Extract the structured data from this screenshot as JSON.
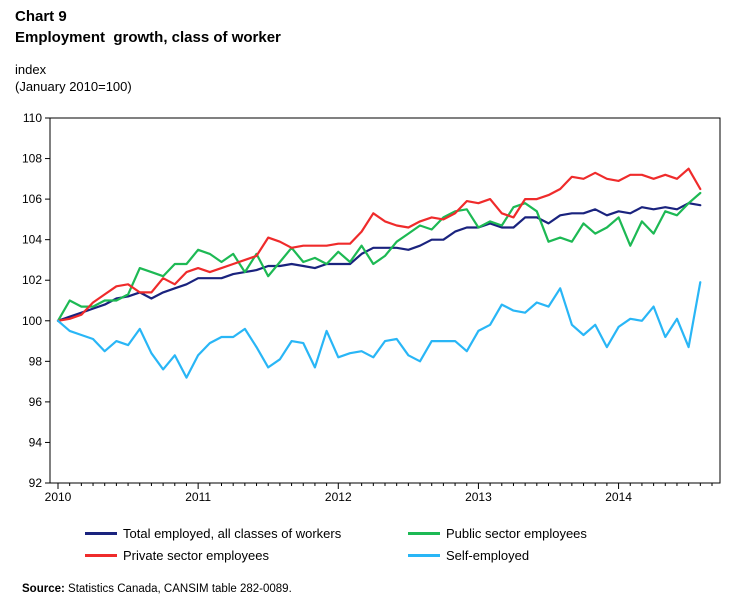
{
  "header": {
    "chart_number": "Chart 9",
    "title": "Employment  growth, class of worker",
    "unit_label": "index",
    "unit_note": "(January 2010=100)"
  },
  "footer": {
    "source_label": "Source:",
    "source_text": "Statistics Canada, CANSIM table 282-0089."
  },
  "chart_data": {
    "type": "line",
    "title": "Employment  growth, class of worker",
    "xlabel": "",
    "ylabel": "index (January 2010=100)",
    "ylim": [
      92,
      110
    ],
    "yticks": [
      "92",
      "94",
      "96",
      "98",
      "100",
      "102",
      "104",
      "106",
      "108",
      "110"
    ],
    "xlim": [
      0,
      56
    ],
    "xticks": [
      {
        "label": "2010",
        "month": 0
      },
      {
        "label": "2011",
        "month": 12
      },
      {
        "label": "2012",
        "month": 24
      },
      {
        "label": "2013",
        "month": 36
      },
      {
        "label": "2014",
        "month": 48
      }
    ],
    "x_start": "January 2010",
    "grid": false,
    "legend_position": "bottom",
    "series": [
      {
        "name": "Total employed, all classes of workers",
        "color": "#1a237e",
        "values": [
          100.0,
          100.2,
          100.4,
          100.6,
          100.8,
          101.1,
          101.2,
          101.4,
          101.1,
          101.4,
          101.6,
          101.8,
          102.1,
          102.1,
          102.1,
          102.3,
          102.4,
          102.5,
          102.7,
          102.7,
          102.8,
          102.7,
          102.6,
          102.8,
          102.8,
          102.8,
          103.3,
          103.6,
          103.6,
          103.6,
          103.5,
          103.7,
          104.0,
          104.0,
          104.4,
          104.6,
          104.6,
          104.8,
          104.6,
          104.6,
          105.1,
          105.1,
          104.8,
          105.2,
          105.3,
          105.3,
          105.5,
          105.2,
          105.4,
          105.3,
          105.6,
          105.5,
          105.6,
          105.5,
          105.8,
          105.7
        ]
      },
      {
        "name": "Public sector employees",
        "color": "#1db954",
        "values": [
          100.0,
          101.0,
          100.7,
          100.7,
          101.0,
          101.0,
          101.3,
          102.6,
          102.4,
          102.2,
          102.8,
          102.8,
          103.5,
          103.3,
          102.9,
          103.3,
          102.4,
          103.3,
          102.2,
          102.9,
          103.6,
          102.9,
          103.1,
          102.8,
          103.4,
          102.9,
          103.7,
          102.8,
          103.2,
          103.9,
          104.3,
          104.7,
          104.5,
          105.1,
          105.4,
          105.5,
          104.6,
          104.9,
          104.7,
          105.6,
          105.8,
          105.4,
          103.9,
          104.1,
          103.9,
          104.8,
          104.3,
          104.6,
          105.1,
          103.7,
          104.9,
          104.3,
          105.4,
          105.2,
          105.8,
          106.3
        ]
      },
      {
        "name": "Private sector employees",
        "color": "#ef2b2b",
        "values": [
          100.0,
          100.1,
          100.3,
          100.9,
          101.3,
          101.7,
          101.8,
          101.4,
          101.4,
          102.1,
          101.8,
          102.4,
          102.6,
          102.4,
          102.6,
          102.8,
          103.0,
          103.2,
          104.1,
          103.9,
          103.6,
          103.7,
          103.7,
          103.7,
          103.8,
          103.8,
          104.4,
          105.3,
          104.9,
          104.7,
          104.6,
          104.9,
          105.1,
          105.0,
          105.3,
          105.9,
          105.8,
          106.0,
          105.3,
          105.1,
          106.0,
          106.0,
          106.2,
          106.5,
          107.1,
          107.0,
          107.3,
          107.0,
          106.9,
          107.2,
          107.2,
          107.0,
          107.2,
          107.0,
          107.5,
          106.5
        ]
      },
      {
        "name": "Self-employed",
        "color": "#29b6f6",
        "values": [
          100.0,
          99.5,
          99.3,
          99.1,
          98.5,
          99.0,
          98.8,
          99.6,
          98.4,
          97.6,
          98.3,
          97.2,
          98.3,
          98.9,
          99.2,
          99.2,
          99.6,
          98.7,
          97.7,
          98.1,
          99.0,
          98.9,
          97.7,
          99.5,
          98.2,
          98.4,
          98.5,
          98.2,
          99.0,
          99.1,
          98.3,
          98.0,
          99.0,
          99.0,
          99.0,
          98.5,
          99.5,
          99.8,
          100.8,
          100.5,
          100.4,
          100.9,
          100.7,
          101.6,
          99.8,
          99.3,
          99.8,
          98.7,
          99.7,
          100.1,
          100.0,
          100.7,
          99.2,
          100.1,
          98.7,
          101.9
        ]
      }
    ]
  }
}
